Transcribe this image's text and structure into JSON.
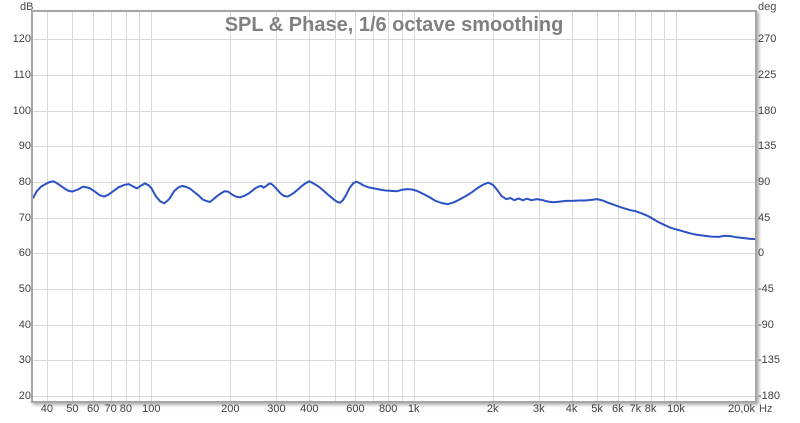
{
  "header": {
    "title": "SPL & Phase, 1/6 octave smoothing"
  },
  "axes": {
    "left": {
      "unit": "dB",
      "ticks": [
        120,
        110,
        100,
        90,
        80,
        70,
        60,
        50,
        40,
        30,
        20
      ]
    },
    "right": {
      "unit": "deg",
      "ticks": [
        270,
        225,
        180,
        135,
        90,
        45,
        0,
        -45,
        -90,
        -135,
        -180
      ]
    },
    "x": {
      "unit": "Hz",
      "scale": "log",
      "min_hz": 35.4,
      "max_hz": 20000,
      "labeled_ticks": [
        {
          "hz": 40,
          "label": "40"
        },
        {
          "hz": 50,
          "label": "50"
        },
        {
          "hz": 60,
          "label": "60"
        },
        {
          "hz": 70,
          "label": "70"
        },
        {
          "hz": 80,
          "label": "80"
        },
        {
          "hz": 100,
          "label": "100"
        },
        {
          "hz": 200,
          "label": "200"
        },
        {
          "hz": 300,
          "label": "300"
        },
        {
          "hz": 400,
          "label": "400"
        },
        {
          "hz": 600,
          "label": "600"
        },
        {
          "hz": 800,
          "label": "800"
        },
        {
          "hz": 1000,
          "label": "1k"
        },
        {
          "hz": 2000,
          "label": "2k"
        },
        {
          "hz": 3000,
          "label": "3k"
        },
        {
          "hz": 4000,
          "label": "4k"
        },
        {
          "hz": 5000,
          "label": "5k"
        },
        {
          "hz": 6000,
          "label": "6k"
        },
        {
          "hz": 7000,
          "label": "7k"
        },
        {
          "hz": 8000,
          "label": "8k"
        },
        {
          "hz": 10000,
          "label": "10k"
        },
        {
          "hz": 20000,
          "label": "20,0k",
          "align": "right"
        }
      ],
      "gridline_hz": [
        40,
        50,
        60,
        70,
        80,
        90,
        100,
        200,
        300,
        400,
        500,
        600,
        700,
        800,
        900,
        1000,
        2000,
        3000,
        4000,
        5000,
        6000,
        7000,
        8000,
        9000,
        10000,
        20000
      ]
    }
  },
  "colors": {
    "trace": "#2b52c3",
    "gridline": "#d9d9d9",
    "frame": "#a6a6a6",
    "tick_text": "#3f3f3f",
    "title_text": "#808080"
  },
  "chart_data": {
    "type": "line",
    "title": "SPL & Phase, 1/6 octave smoothing",
    "xlabel": "Hz",
    "ylabel_left": "dB",
    "ylabel_right": "deg",
    "x_scale": "log",
    "xlim": [
      35.4,
      20000
    ],
    "ylim_left": [
      20,
      120
    ],
    "ylim_right": [
      -180,
      270
    ],
    "grid": true,
    "legend_position": "none",
    "series": [
      {
        "name": "SPL",
        "axis": "left",
        "unit": "dB",
        "smoothing": "1/6 octave",
        "color": "#2b52c3",
        "points": [
          [
            35.5,
            75.6
          ],
          [
            36.5,
            77.3
          ],
          [
            38,
            78.7
          ],
          [
            39.5,
            79.4
          ],
          [
            41,
            80.0
          ],
          [
            42.5,
            80.2
          ],
          [
            44,
            79.5
          ],
          [
            46,
            78.5
          ],
          [
            48,
            77.6
          ],
          [
            50,
            77.3
          ],
          [
            52.5,
            77.9
          ],
          [
            55,
            78.7
          ],
          [
            58,
            78.3
          ],
          [
            61,
            77.3
          ],
          [
            63.5,
            76.3
          ],
          [
            66,
            75.9
          ],
          [
            68.5,
            76.4
          ],
          [
            71.5,
            77.4
          ],
          [
            75,
            78.5
          ],
          [
            79,
            79.2
          ],
          [
            82,
            79.4
          ],
          [
            85,
            78.8
          ],
          [
            88,
            78.2
          ],
          [
            91,
            78.9
          ],
          [
            94.5,
            79.6
          ],
          [
            97.5,
            79.1
          ],
          [
            100,
            78.3
          ],
          [
            104,
            76.0
          ],
          [
            108,
            74.6
          ],
          [
            112,
            74.0
          ],
          [
            117,
            75.2
          ],
          [
            122,
            77.4
          ],
          [
            127,
            78.5
          ],
          [
            131,
            78.9
          ],
          [
            136,
            78.6
          ],
          [
            140,
            78.2
          ],
          [
            145,
            77.3
          ],
          [
            151,
            76.3
          ],
          [
            157,
            75.1
          ],
          [
            163,
            74.6
          ],
          [
            167,
            74.4
          ],
          [
            172,
            75.1
          ],
          [
            178,
            76.0
          ],
          [
            184,
            76.8
          ],
          [
            190,
            77.4
          ],
          [
            196,
            77.3
          ],
          [
            203,
            76.5
          ],
          [
            210,
            75.9
          ],
          [
            218,
            75.7
          ],
          [
            226,
            76.1
          ],
          [
            234,
            76.7
          ],
          [
            242,
            77.5
          ],
          [
            250,
            78.3
          ],
          [
            258,
            78.8
          ],
          [
            263,
            78.9
          ],
          [
            268,
            78.4
          ],
          [
            273,
            78.8
          ],
          [
            280,
            79.4
          ],
          [
            285,
            79.6
          ],
          [
            292,
            79.0
          ],
          [
            300,
            78.1
          ],
          [
            310,
            76.9
          ],
          [
            320,
            76.1
          ],
          [
            330,
            75.9
          ],
          [
            339,
            76.3
          ],
          [
            350,
            77.0
          ],
          [
            362,
            77.9
          ],
          [
            375,
            78.9
          ],
          [
            388,
            79.7
          ],
          [
            400,
            80.2
          ],
          [
            413,
            79.7
          ],
          [
            426,
            79.1
          ],
          [
            440,
            78.4
          ],
          [
            456,
            77.4
          ],
          [
            472,
            76.4
          ],
          [
            487,
            75.6
          ],
          [
            500,
            74.9
          ],
          [
            512,
            74.4
          ],
          [
            524,
            74.2
          ],
          [
            537,
            74.9
          ],
          [
            552,
            76.3
          ],
          [
            570,
            78.3
          ],
          [
            589,
            79.7
          ],
          [
            605,
            80.1
          ],
          [
            622,
            79.7
          ],
          [
            645,
            79.0
          ],
          [
            672,
            78.5
          ],
          [
            705,
            78.2
          ],
          [
            740,
            77.9
          ],
          [
            780,
            77.6
          ],
          [
            822,
            77.5
          ],
          [
            862,
            77.4
          ],
          [
            902,
            77.8
          ],
          [
            945,
            78.0
          ],
          [
            985,
            77.9
          ],
          [
            1030,
            77.5
          ],
          [
            1085,
            76.7
          ],
          [
            1145,
            75.8
          ],
          [
            1205,
            74.8
          ],
          [
            1275,
            74.1
          ],
          [
            1350,
            73.8
          ],
          [
            1425,
            74.3
          ],
          [
            1505,
            75.2
          ],
          [
            1585,
            76.1
          ],
          [
            1665,
            77.1
          ],
          [
            1752,
            78.3
          ],
          [
            1845,
            79.3
          ],
          [
            1925,
            79.8
          ],
          [
            2005,
            79.2
          ],
          [
            2085,
            77.7
          ],
          [
            2165,
            76.0
          ],
          [
            2255,
            75.2
          ],
          [
            2335,
            75.5
          ],
          [
            2420,
            74.9
          ],
          [
            2510,
            75.4
          ],
          [
            2605,
            74.9
          ],
          [
            2705,
            75.3
          ],
          [
            2810,
            74.9
          ],
          [
            2955,
            75.2
          ],
          [
            3105,
            74.9
          ],
          [
            3255,
            74.5
          ],
          [
            3410,
            74.3
          ],
          [
            3605,
            74.5
          ],
          [
            3805,
            74.7
          ],
          [
            4005,
            74.7
          ],
          [
            4255,
            74.8
          ],
          [
            4505,
            74.8
          ],
          [
            4805,
            75.0
          ],
          [
            5005,
            75.2
          ],
          [
            5255,
            74.8
          ],
          [
            5505,
            74.2
          ],
          [
            5805,
            73.6
          ],
          [
            6105,
            73.0
          ],
          [
            6405,
            72.5
          ],
          [
            6705,
            72.1
          ],
          [
            7005,
            71.8
          ],
          [
            7405,
            71.2
          ],
          [
            7805,
            70.5
          ],
          [
            8105,
            69.8
          ],
          [
            8505,
            68.9
          ],
          [
            9005,
            68.0
          ],
          [
            9505,
            67.2
          ],
          [
            10005,
            66.7
          ],
          [
            10605,
            66.2
          ],
          [
            11305,
            65.6
          ],
          [
            12005,
            65.2
          ],
          [
            12805,
            64.9
          ],
          [
            13605,
            64.7
          ],
          [
            14505,
            64.6
          ],
          [
            15305,
            64.9
          ],
          [
            16205,
            64.8
          ],
          [
            17005,
            64.5
          ],
          [
            18005,
            64.3
          ],
          [
            19005,
            64.1
          ],
          [
            20000,
            64.0
          ]
        ]
      }
    ]
  }
}
